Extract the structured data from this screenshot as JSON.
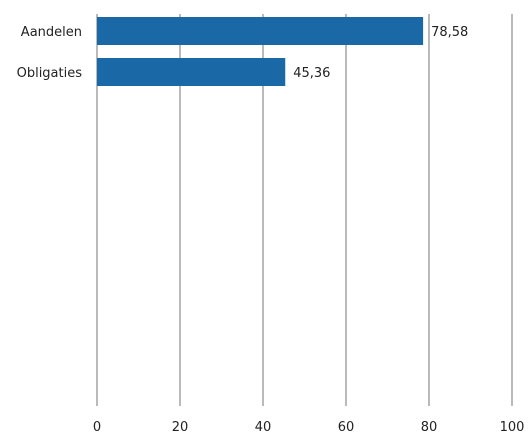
{
  "chart_data": {
    "type": "bar",
    "orientation": "horizontal",
    "categories": [
      "Aandelen",
      "Obligaties"
    ],
    "values": [
      78.58,
      45.36
    ],
    "value_labels": [
      "78,58",
      "45,36"
    ],
    "title": "",
    "xlabel": "",
    "ylabel": "",
    "xlim": [
      0,
      100
    ],
    "ticks": [
      0,
      20,
      40,
      60,
      80,
      100
    ],
    "tick_labels": [
      "0",
      "20",
      "40",
      "60",
      "80",
      "100"
    ],
    "grid": true,
    "legend": "none",
    "bar_color": "#1b68a6",
    "grid_color": "#a8a8a8"
  }
}
